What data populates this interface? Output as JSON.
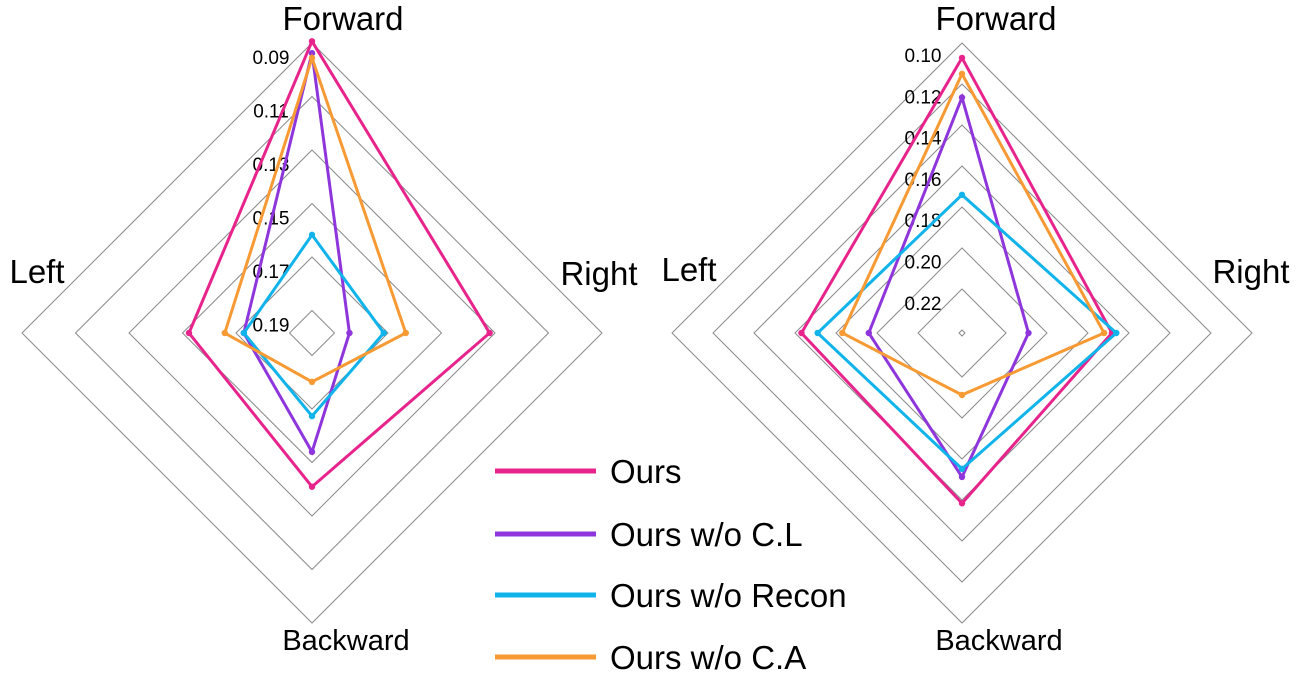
{
  "chart_data": [
    {
      "type": "radar",
      "axes": [
        "Forward",
        "Right",
        "Backward",
        "Left"
      ],
      "ticks": [
        "0.09",
        "0.11",
        "0.13",
        "0.15",
        "0.17",
        "0.19"
      ],
      "range": [
        0.21,
        0.09
      ],
      "series": [
        {
          "name": "Ours",
          "values": [
            0.0893,
            0.1365,
            0.1464,
            0.1591
          ]
        },
        {
          "name": "Ours w/o C.L",
          "values": [
            0.0942,
            0.1945,
            0.1608,
            0.1818
          ]
        },
        {
          "name": "Ours w/o Recon",
          "values": [
            0.1694,
            0.1803,
            0.1756,
            0.1818
          ]
        },
        {
          "name": "Ours w/o C.A",
          "values": [
            0.0962,
            0.1712,
            0.1898,
            0.1739
          ]
        }
      ]
    },
    {
      "type": "radar",
      "axes": [
        "Forward",
        "Right",
        "Backward",
        "Left"
      ],
      "ticks": [
        "0.10",
        "0.12",
        "0.14",
        "0.16",
        "0.18",
        "0.20",
        "0.22"
      ],
      "range": [
        0.24,
        0.1
      ],
      "series": [
        {
          "name": "Ours",
          "values": [
            0.1072,
            0.1676,
            0.1578,
            0.1625
          ]
        },
        {
          "name": "Ours w/o C.L",
          "values": [
            0.1263,
            0.2079,
            0.1705,
            0.195
          ]
        },
        {
          "name": "Ours w/o Recon",
          "values": [
            0.1733,
            0.1655,
            0.1744,
            0.1703
          ]
        },
        {
          "name": "Ours w/o C.A",
          "values": [
            0.1149,
            0.1714,
            0.2101,
            0.1822
          ]
        }
      ]
    }
  ],
  "legend": [
    {
      "label": "Ours",
      "color": "#E7238C"
    },
    {
      "label": "Ours w/o C.L",
      "color": "#8E36DB"
    },
    {
      "label": "Ours w/o Recon",
      "color": "#11B3EB"
    },
    {
      "label": "Ours w/o C.A",
      "color": "#F79A34"
    }
  ]
}
